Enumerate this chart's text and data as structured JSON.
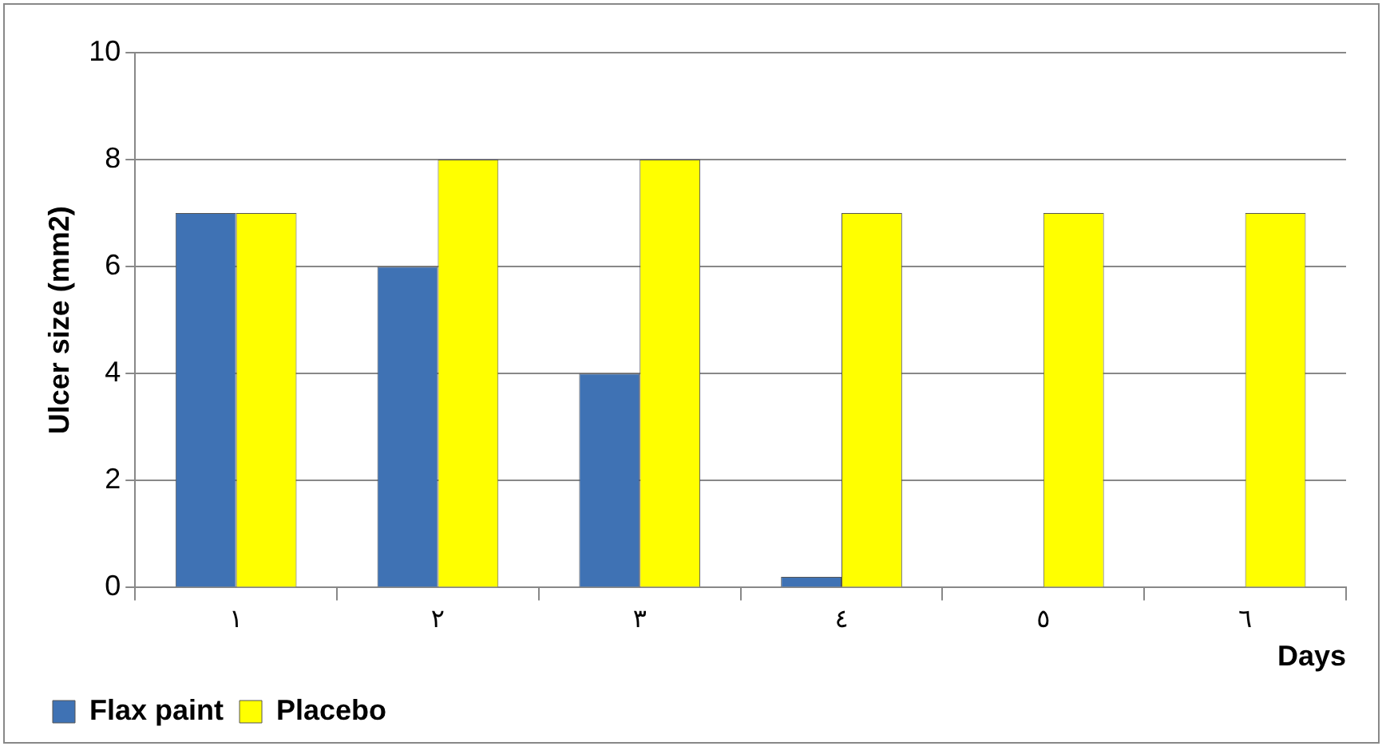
{
  "chart_data": {
    "type": "bar",
    "xlabel": "Days",
    "ylabel": "Ulcer size (mm2)",
    "categories": [
      "١",
      "٢",
      "٣",
      "٤",
      "٥",
      "٦"
    ],
    "series": [
      {
        "name": "Flax paint",
        "color": "#3f72b4",
        "values": [
          7,
          6,
          4,
          0.2,
          0,
          0
        ]
      },
      {
        "name": "Placebo",
        "color": "#ffff00",
        "values": [
          7,
          8,
          8,
          7,
          7,
          7
        ]
      }
    ],
    "ylim": [
      0,
      10
    ],
    "yticks": [
      0,
      2,
      4,
      6,
      8,
      10
    ],
    "grid": "y",
    "legend": "bottom left"
  }
}
